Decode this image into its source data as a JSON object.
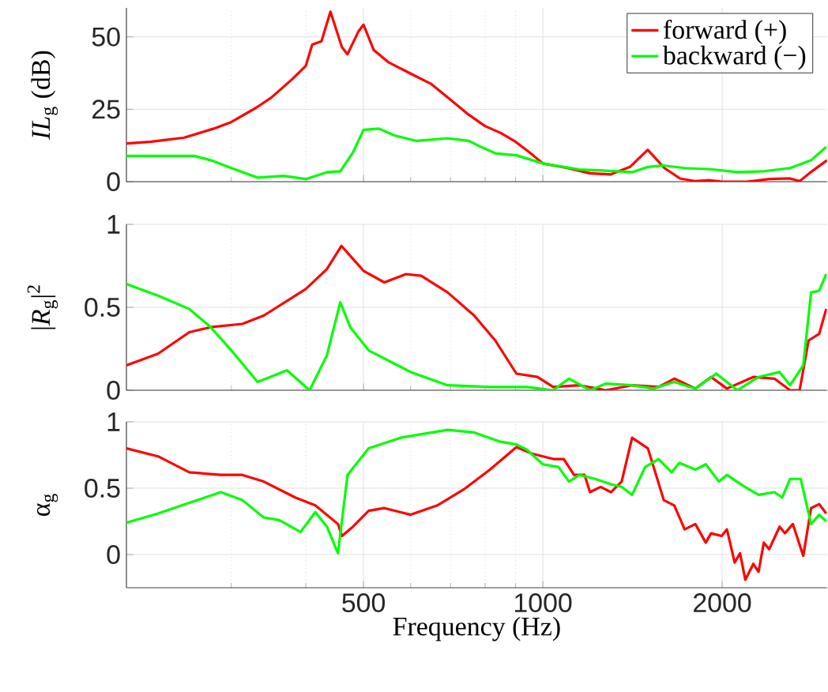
{
  "chart_data": [
    {
      "type": "line",
      "ylabel": "*IL*$_{g}$ (dB)",
      "log": "x",
      "grid": true,
      "legend": "top right",
      "tick_labels": "y",
      "xlim": [
        200,
        3000
      ],
      "xticks": [
        {
          "value": 300,
          "label": null
        },
        {
          "value": 400,
          "label": null
        },
        500,
        {
          "value": 600,
          "label": null
        },
        {
          "value": 700,
          "label": null
        },
        {
          "value": 800,
          "label": null
        },
        {
          "value": 900,
          "label": null
        },
        1000,
        2000
      ],
      "ylim": [
        0,
        60
      ],
      "yticks": [
        0,
        25,
        50
      ],
      "series": [
        {
          "name": "forward (+)",
          "color": "#ff0000",
          "x": [
            200,
            220,
            250,
            280,
            300,
            330,
            350,
            380,
            400,
            410,
            425,
            440,
            460,
            470,
            490,
            500,
            520,
            550,
            600,
            650,
            700,
            750,
            800,
            850,
            900,
            950,
            1000,
            1100,
            1200,
            1300,
            1400,
            1500,
            1600,
            1700,
            1800,
            1900,
            2000,
            2200,
            2400,
            2600,
            2700,
            2800,
            3000
          ],
          "values": [
            13.2,
            13.8,
            15.2,
            18.3,
            20.6,
            25.5,
            29,
            35.5,
            40,
            47.3,
            48.5,
            58.7,
            46.4,
            44,
            51.8,
            54.2,
            45.5,
            41.3,
            37.3,
            33.7,
            28.3,
            23.2,
            19.2,
            16.8,
            13.8,
            10.1,
            6.3,
            4.7,
            2.9,
            2.5,
            5.1,
            11,
            4.7,
            1.1,
            0.2,
            0.5,
            0,
            0,
            0.9,
            1.1,
            0.2,
            2.9,
            7.4
          ]
        },
        {
          "name": "backward (−)",
          "color": "#00ff00",
          "x": [
            200,
            260,
            277,
            300,
            332,
            368,
            400,
            434,
            457,
            480,
            500,
            531,
            565,
            613,
            692,
            752,
            782,
            832,
            903,
            1000,
            1152,
            1275,
            1412,
            1501,
            1596,
            1730,
            1916,
            2121,
            2349,
            2600,
            2820,
            2990
          ],
          "values": [
            8.9,
            8.9,
            7.4,
            4.7,
            1.4,
            2,
            0.9,
            3.3,
            3.6,
            10.1,
            17.9,
            18.3,
            15.9,
            14.1,
            15,
            14.1,
            12.3,
            9.8,
            9.1,
            6.3,
            4.2,
            3.8,
            3.3,
            5.1,
            5.6,
            4.7,
            4.3,
            3.3,
            3.6,
            4.7,
            7.4,
            12
          ]
        }
      ]
    },
    {
      "type": "line",
      "ylabel": "|*R*$_{g}$|$^{2}$",
      "log": "x",
      "grid": true,
      "tick_labels": "y",
      "xlim": [
        200,
        3000
      ],
      "xticks": [
        {
          "value": 300,
          "label": null
        },
        {
          "value": 400,
          "label": null
        },
        500,
        {
          "value": 600,
          "label": null
        },
        {
          "value": 700,
          "label": null
        },
        {
          "value": 800,
          "label": null
        },
        {
          "value": 900,
          "label": null
        },
        1000,
        2000
      ],
      "ylim": [
        0,
        1
      ],
      "yticks": [
        0,
        0.5,
        1
      ],
      "series": [
        {
          "color": "#ff0000",
          "x": [
            200,
            226,
            255,
            277,
            313,
            340,
            400,
            434,
            459,
            475,
            500,
            542,
            589,
            625,
            692,
            767,
            832,
            903,
            979,
            1041,
            1152,
            1275,
            1412,
            1564,
            1662,
            1803,
            1916,
            2037,
            2256,
            2447,
            2600,
            2698,
            2793,
            2910,
            2990
          ],
          "values": [
            0.15,
            0.22,
            0.35,
            0.38,
            0.4,
            0.45,
            0.61,
            0.73,
            0.87,
            0.81,
            0.72,
            0.65,
            0.7,
            0.69,
            0.59,
            0.45,
            0.3,
            0.1,
            0.08,
            0.02,
            0.03,
            0,
            0.03,
            0.02,
            0.07,
            0.01,
            0.08,
            0.01,
            0.08,
            0.07,
            0,
            0,
            0.3,
            0.34,
            0.49
          ]
        },
        {
          "color": "#00ff00",
          "x": [
            200,
            226,
            255,
            277,
            300,
            332,
            372,
            406,
            434,
            457,
            475,
            510,
            600,
            692,
            815,
            940,
            1041,
            1106,
            1200,
            1275,
            1412,
            1532,
            1662,
            1803,
            1955,
            2121,
            2302,
            2497,
            2600,
            2736,
            2820,
            2910,
            2990
          ],
          "values": [
            0.64,
            0.57,
            0.49,
            0.38,
            0.24,
            0.05,
            0.12,
            0,
            0.21,
            0.53,
            0.38,
            0.24,
            0.11,
            0.03,
            0.02,
            0.02,
            0,
            0.07,
            0,
            0.04,
            0.03,
            0.01,
            0.05,
            0.01,
            0.1,
            0,
            0.08,
            0.11,
            0.03,
            0.15,
            0.59,
            0.6,
            0.7
          ]
        }
      ]
    },
    {
      "type": "line",
      "ylabel": "α$_{g}$",
      "xlabel": "Frequency (Hz)",
      "log": "x",
      "grid": true,
      "xlim": [
        200,
        3000
      ],
      "xticks": [
        {
          "value": 300,
          "label": null
        },
        {
          "value": 400,
          "label": null
        },
        500,
        {
          "value": 600,
          "label": null
        },
        {
          "value": 700,
          "label": null
        },
        {
          "value": 800,
          "label": null
        },
        {
          "value": 900,
          "label": null
        },
        1000,
        2000
      ],
      "ylim": [
        -0.25,
        1
      ],
      "yticks": [
        0,
        0.5,
        1
      ],
      "series": [
        {
          "color": "#ff0000",
          "x": [
            200,
            226,
            255,
            288,
            313,
            340,
            384,
            415,
            453,
            460,
            480,
            510,
            542,
            600,
            665,
            736,
            815,
            903,
            959,
            1041,
            1084,
            1128,
            1175,
            1200,
            1250,
            1301,
            1356,
            1412,
            1501,
            1596,
            1662,
            1730,
            1803,
            1877,
            1916,
            1996,
            2037,
            2099,
            2143,
            2187,
            2256,
            2302,
            2349,
            2398,
            2497,
            2549,
            2628,
            2736,
            2820,
            2910,
            2990
          ],
          "values": [
            0.8,
            0.74,
            0.62,
            0.6,
            0.6,
            0.55,
            0.43,
            0.37,
            0.23,
            0.14,
            0.21,
            0.33,
            0.35,
            0.3,
            0.37,
            0.49,
            0.64,
            0.81,
            0.76,
            0.72,
            0.72,
            0.6,
            0.6,
            0.47,
            0.51,
            0.47,
            0.55,
            0.88,
            0.8,
            0.41,
            0.37,
            0.19,
            0.23,
            0.09,
            0.16,
            0.14,
            0.19,
            -0.06,
            0.01,
            -0.19,
            -0.07,
            -0.13,
            0.09,
            0.04,
            0.21,
            0.16,
            0.23,
            -0.01,
            0.35,
            0.38,
            0.31
          ]
        },
        {
          "color": "#00ff00",
          "x": [
            200,
            226,
            255,
            288,
            313,
            340,
            361,
            392,
            415,
            434,
            453,
            470,
            510,
            577,
            692,
            767,
            849,
            903,
            940,
            1000,
            1062,
            1106,
            1152,
            1224,
            1301,
            1356,
            1412,
            1485,
            1564,
            1645,
            1695,
            1803,
            1877,
            1975,
            2037,
            2165,
            2302,
            2447,
            2522,
            2600,
            2709,
            2820,
            2910,
            2990
          ],
          "values": [
            0.24,
            0.31,
            0.39,
            0.47,
            0.41,
            0.28,
            0.26,
            0.17,
            0.32,
            0.21,
            0.01,
            0.6,
            0.8,
            0.88,
            0.94,
            0.92,
            0.85,
            0.83,
            0.79,
            0.68,
            0.66,
            0.55,
            0.6,
            0.57,
            0.53,
            0.51,
            0.45,
            0.66,
            0.72,
            0.62,
            0.69,
            0.64,
            0.68,
            0.55,
            0.6,
            0.52,
            0.45,
            0.47,
            0.43,
            0.57,
            0.57,
            0.23,
            0.3,
            0.25
          ]
        }
      ]
    }
  ]
}
